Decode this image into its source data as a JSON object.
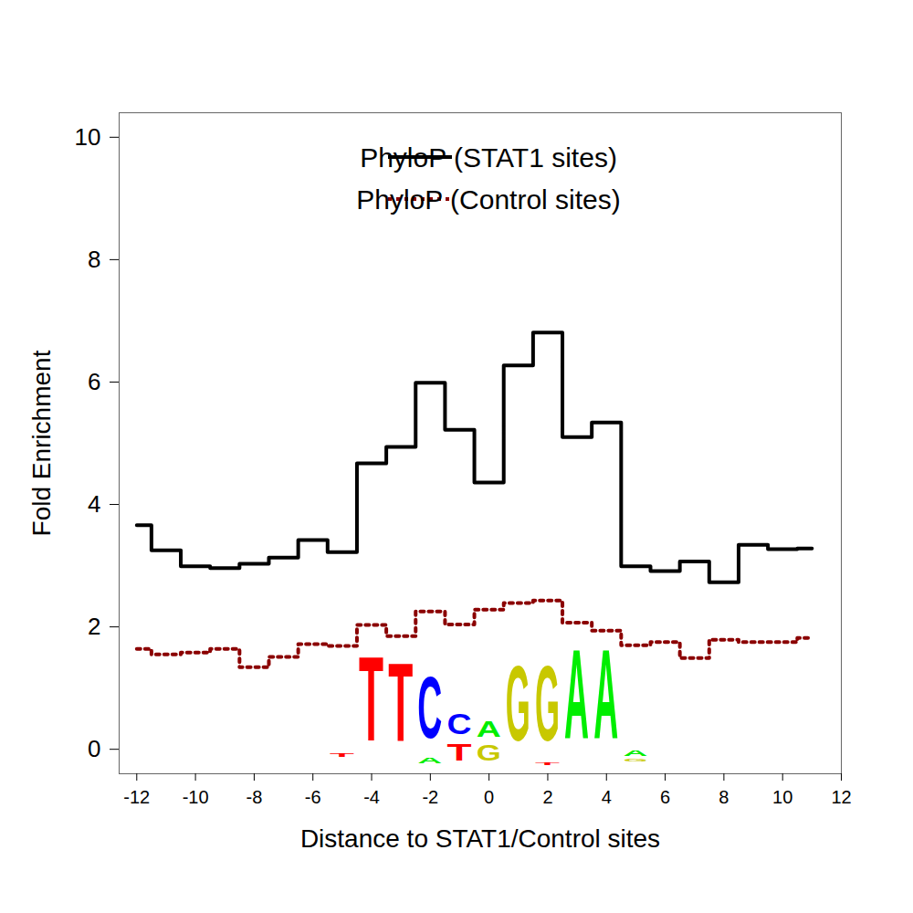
{
  "chart_data": {
    "type": "line",
    "x_label": "Distance to STAT1/Control sites",
    "y_label": "Fold Enrichment",
    "x": [
      -12,
      -11,
      -10,
      -9,
      -8,
      -7,
      -6,
      -5,
      -4,
      -3,
      -2,
      -1,
      0,
      1,
      2,
      3,
      4,
      5,
      6,
      7,
      8,
      9,
      10,
      11
    ],
    "series": [
      {
        "name": "PhyloP (STAT1 sites)",
        "color": "#000000",
        "line_style": "solid",
        "values": [
          3.66,
          3.25,
          2.99,
          2.96,
          3.03,
          3.13,
          3.42,
          3.22,
          4.67,
          4.94,
          5.99,
          5.22,
          4.36,
          6.27,
          6.81,
          5.1,
          5.34,
          2.99,
          2.91,
          3.07,
          2.73,
          3.34,
          3.27,
          3.28
        ]
      },
      {
        "name": "PhyloP (Control sites)",
        "color": "#8b0000",
        "line_style": "dotted",
        "values": [
          1.64,
          1.55,
          1.58,
          1.64,
          1.34,
          1.51,
          1.72,
          1.69,
          2.03,
          1.85,
          2.25,
          2.04,
          2.28,
          2.39,
          2.43,
          2.07,
          1.94,
          1.7,
          1.75,
          1.49,
          1.79,
          1.75,
          1.75,
          1.82
        ]
      }
    ],
    "xlim": [
      -12.6,
      12
    ],
    "ylim": [
      -0.4,
      10.4
    ],
    "xticks": [
      -12,
      -10,
      -8,
      -6,
      -4,
      -2,
      0,
      2,
      4,
      6,
      8,
      10,
      12
    ],
    "yticks": [
      0,
      2,
      4,
      6,
      8,
      10
    ],
    "grid": false,
    "legend": "top-right",
    "motif": [
      {
        "position": -5,
        "letter": "T",
        "ymin": -0.15,
        "ymax": -0.05,
        "color": "#ff0000"
      },
      {
        "position": -4,
        "letter": "T",
        "ymin": -0.27,
        "ymax": 1.94,
        "color": "#ff0000"
      },
      {
        "position": -3,
        "letter": "T",
        "ymin": -0.27,
        "ymax": 1.79,
        "color": "#ff0000"
      },
      {
        "position": -2,
        "letter": "A",
        "ymin": -0.27,
        "ymax": -0.12,
        "color": "#00ee00"
      },
      {
        "position": -2,
        "letter": "C",
        "ymin": -0.12,
        "ymax": 1.49,
        "color": "#0000ff"
      },
      {
        "position": -1,
        "letter": "T",
        "ymin": -0.27,
        "ymax": 0.15,
        "color": "#ff0000"
      },
      {
        "position": -1,
        "letter": "C",
        "ymin": 0.15,
        "ymax": 0.67,
        "color": "#0000ff"
      },
      {
        "position": 0,
        "letter": "G",
        "ymin": -0.27,
        "ymax": 0.12,
        "color": "#c8c800"
      },
      {
        "position": 0,
        "letter": "A",
        "ymin": 0.12,
        "ymax": 0.52,
        "color": "#00ee00"
      },
      {
        "position": 1,
        "letter": "G",
        "ymin": -0.22,
        "ymax": 1.72,
        "color": "#c8c800"
      },
      {
        "position": 2,
        "letter": "T",
        "ymin": -0.27,
        "ymax": -0.22,
        "color": "#ff0000"
      },
      {
        "position": 2,
        "letter": "G",
        "ymin": -0.22,
        "ymax": 1.72,
        "color": "#c8c800"
      },
      {
        "position": 3,
        "letter": "A",
        "ymin": -0.27,
        "ymax": 2.04,
        "color": "#00ee00"
      },
      {
        "position": 4,
        "letter": "A",
        "ymin": -0.27,
        "ymax": 2.04,
        "color": "#00ee00"
      },
      {
        "position": 5,
        "letter": "G",
        "ymin": -0.22,
        "ymax": -0.15,
        "color": "#c8c800"
      },
      {
        "position": 5,
        "letter": "A",
        "ymin": -0.15,
        "ymax": 0.0,
        "color": "#00ee00"
      }
    ]
  }
}
